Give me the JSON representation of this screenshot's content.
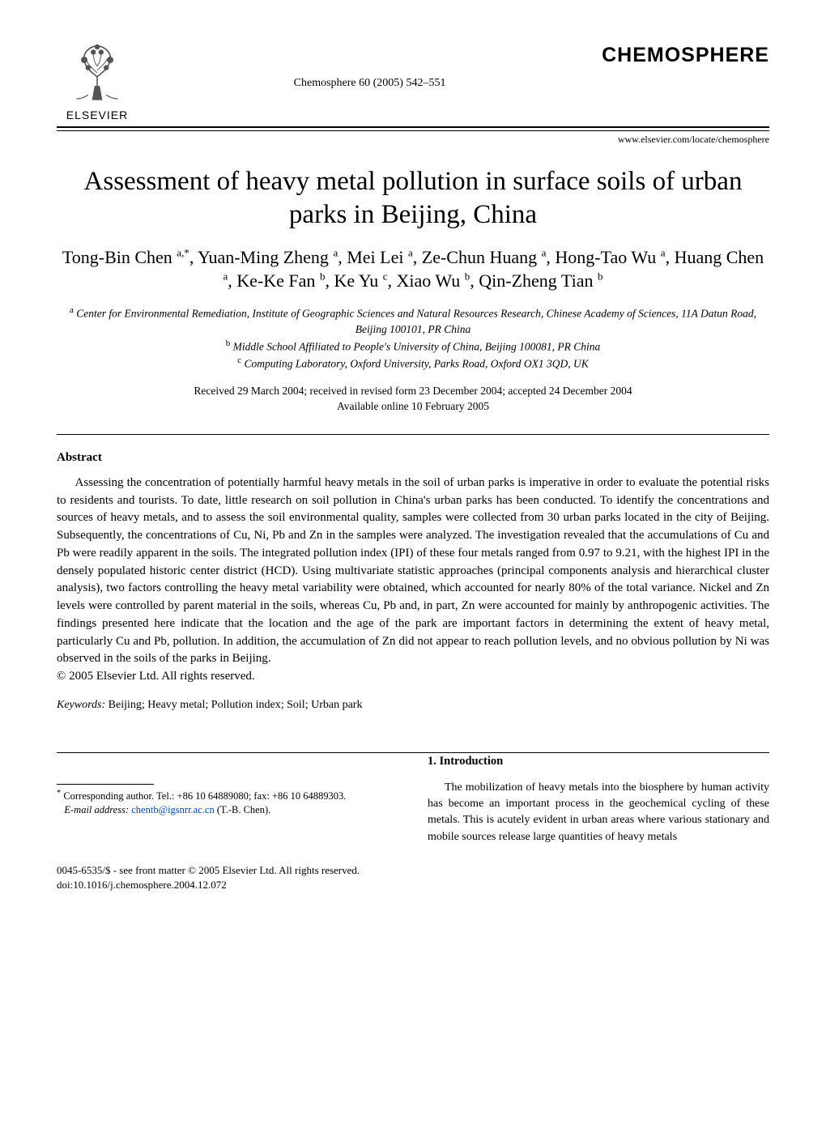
{
  "publisher": {
    "name": "ELSEVIER",
    "tree_color": "#6b6b6b"
  },
  "journal": {
    "brand": "CHEMOSPHERE",
    "citation": "Chemosphere 60 (2005) 542–551",
    "url": "www.elsevier.com/locate/chemosphere"
  },
  "title": "Assessment of heavy metal pollution in surface soils of urban parks in Beijing, China",
  "authors_html": "Tong-Bin Chen <sup>a,*</sup>, Yuan-Ming Zheng <sup>a</sup>, Mei Lei <sup>a</sup>, Ze-Chun Huang <sup>a</sup>, Hong-Tao Wu <sup>a</sup>, Huang Chen <sup>a</sup>, Ke-Ke Fan <sup>b</sup>, Ke Yu <sup>c</sup>, Xiao Wu <sup>b</sup>, Qin-Zheng Tian <sup>b</sup>",
  "affiliations": [
    {
      "key": "a",
      "text": "Center for Environmental Remediation, Institute of Geographic Sciences and Natural Resources Research, Chinese Academy of Sciences, 11A Datun Road, Beijing 100101, PR China"
    },
    {
      "key": "b",
      "text": "Middle School Affiliated to People's University of China, Beijing 100081, PR China"
    },
    {
      "key": "c",
      "text": "Computing Laboratory, Oxford University, Parks Road, Oxford OX1 3QD, UK"
    }
  ],
  "dates": {
    "received": "Received 29 March 2004; received in revised form 23 December 2004; accepted 24 December 2004",
    "online": "Available online 10 February 2005"
  },
  "abstract": {
    "heading": "Abstract",
    "body": "Assessing the concentration of potentially harmful heavy metals in the soil of urban parks is imperative in order to evaluate the potential risks to residents and tourists. To date, little research on soil pollution in China's urban parks has been conducted. To identify the concentrations and sources of heavy metals, and to assess the soil environmental quality, samples were collected from 30 urban parks located in the city of Beijing. Subsequently, the concentrations of Cu, Ni, Pb and Zn in the samples were analyzed. The investigation revealed that the accumulations of Cu and Pb were readily apparent in the soils. The integrated pollution index (IPI) of these four metals ranged from 0.97 to 9.21, with the highest IPI in the densely populated historic center district (HCD). Using multivariate statistic approaches (principal components analysis and hierarchical cluster analysis), two factors controlling the heavy metal variability were obtained, which accounted for nearly 80% of the total variance. Nickel and Zn levels were controlled by parent material in the soils, whereas Cu, Pb and, in part, Zn were accounted for mainly by anthropogenic activities. The findings presented here indicate that the location and the age of the park are important factors in determining the extent of heavy metal, particularly Cu and Pb, pollution. In addition, the accumulation of Zn did not appear to reach pollution levels, and no obvious pollution by Ni was observed in the soils of the parks in Beijing.",
    "copyright": "© 2005 Elsevier Ltd. All rights reserved."
  },
  "keywords": {
    "label": "Keywords:",
    "list": " Beijing; Heavy metal; Pollution index; Soil; Urban park"
  },
  "section1": {
    "heading": "1. Introduction",
    "para": "The mobilization of heavy metals into the biosphere by human activity has become an important process in the geochemical cycling of these metals. This is acutely evident in urban areas where various stationary and mobile sources release large quantities of heavy metals"
  },
  "footnote": {
    "marker": "*",
    "corresponding": " Corresponding author. Tel.: +86 10 64889080; fax: +86 10 64889303.",
    "email_label": "E-mail address:",
    "email": "chentb@igsnrr.ac.cn",
    "email_who": " (T.-B. Chen)."
  },
  "footer": {
    "line1": "0045-6535/$ - see front matter © 2005 Elsevier Ltd. All rights reserved.",
    "line2": "doi:10.1016/j.chemosphere.2004.12.072"
  },
  "colors": {
    "text": "#000000",
    "background": "#ffffff",
    "link": "#0147a0"
  },
  "typography": {
    "title_fontsize_pt": 24,
    "authors_fontsize_pt": 16,
    "body_fontsize_pt": 11,
    "font_family": "Times New Roman"
  }
}
